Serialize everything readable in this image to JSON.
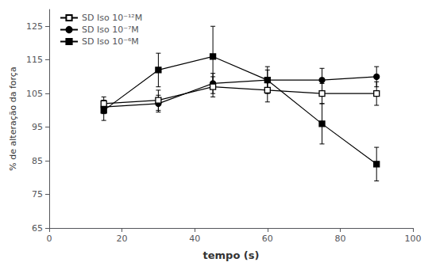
{
  "chart_data": {
    "type": "line",
    "x": [
      15,
      30,
      45,
      60,
      75,
      90
    ],
    "series": [
      {
        "name": "SD Iso 10⁻¹²M",
        "values": [
          102,
          103,
          107,
          106,
          105,
          105
        ],
        "yerr": [
          2,
          3,
          3,
          3.5,
          3,
          3.5
        ],
        "marker": "square_open",
        "color": "#000000",
        "line_style": "solid"
      },
      {
        "name": "SD Iso 10⁻⁷M",
        "values": [
          101,
          102,
          108,
          109,
          109,
          110
        ],
        "yerr": [
          2,
          2.5,
          3,
          3,
          3.5,
          3
        ],
        "marker": "circle",
        "color": "#000000",
        "line_style": "solid"
      },
      {
        "name": "SD Iso 10⁻⁶M",
        "values": [
          100,
          112,
          116,
          109,
          96,
          84
        ],
        "yerr": [
          3,
          5,
          9,
          4,
          6,
          5
        ],
        "marker": "square",
        "color": "#000000",
        "line_style": "solid"
      }
    ],
    "xlabel": "tempo (s)",
    "ylabel": "% de alteração da força",
    "xlim": [
      0,
      100
    ],
    "ylim": [
      65,
      130
    ],
    "xticks": [
      0,
      20,
      40,
      60,
      80,
      100
    ],
    "yticks": [
      65,
      75,
      85,
      95,
      105,
      115,
      125
    ],
    "legend": "upper left",
    "grid": false
  }
}
